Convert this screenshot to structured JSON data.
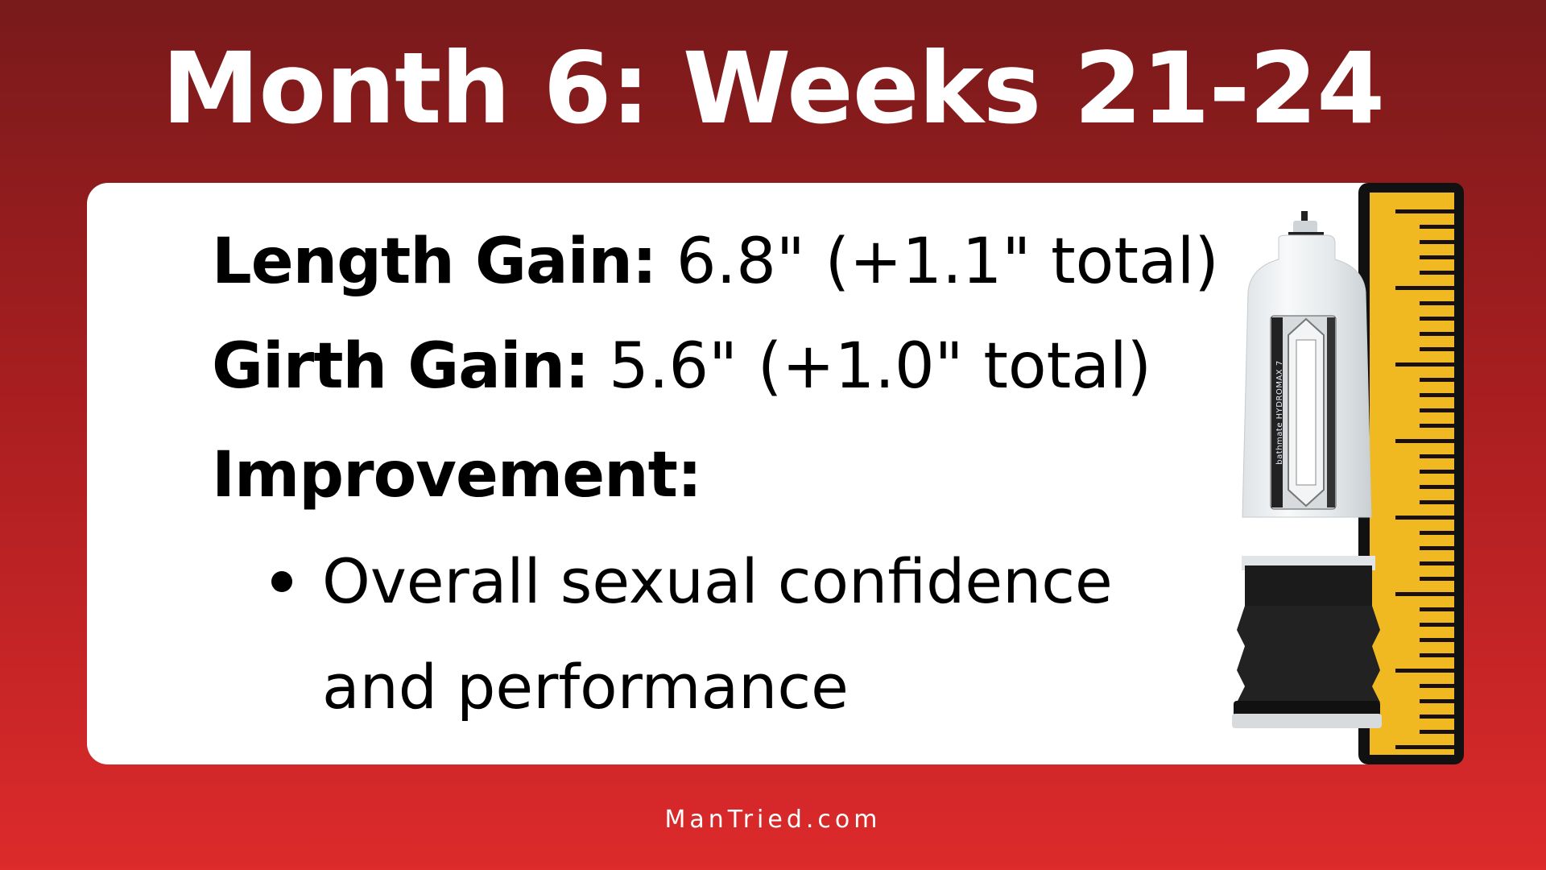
{
  "title": "Month 6: Weeks 21-24",
  "stats": [
    {
      "label": "Length Gain:",
      "value": " 6.8\" (+1.1\" total)"
    },
    {
      "label": "Girth Gain:",
      "value": " 5.6\" (+1.0\" total)"
    }
  ],
  "improvement": {
    "label": "Improvement:",
    "bullets": [
      "Overall sexual confidence",
      "and performance"
    ]
  },
  "footer": "ManTried.com",
  "product_logo_text": "bathmate HYDROMAX 7",
  "colors": {
    "background_top": "#781a1b",
    "background_bottom": "#dd2a2b",
    "ruler": "#f0b921",
    "card": "#ffffff"
  }
}
